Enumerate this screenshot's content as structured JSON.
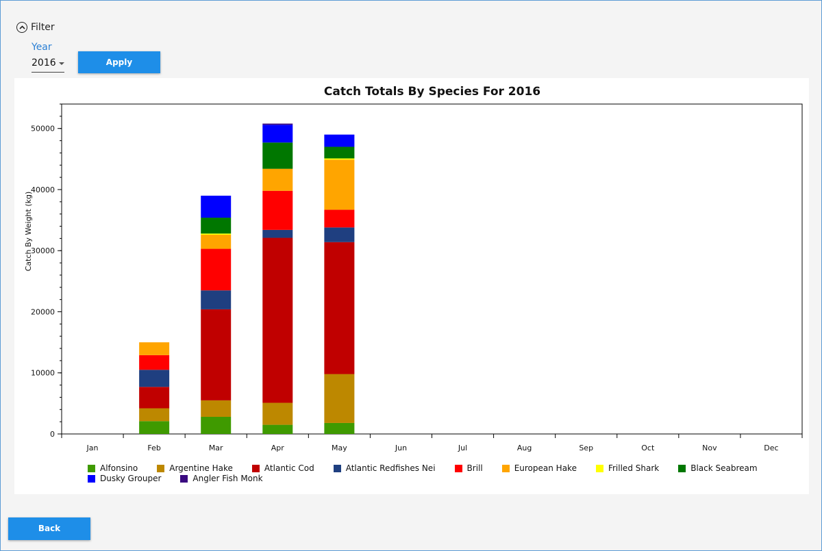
{
  "filter": {
    "toggle_label": "Filter",
    "year_label": "Year",
    "year_value": "2016",
    "apply_label": "Apply"
  },
  "back_label": "Back",
  "chart_data": {
    "type": "bar",
    "stacked": true,
    "title": "Catch Totals By Species For 2016",
    "xlabel": "",
    "ylabel": "Catch By Weight (kg)",
    "ylim": [
      0,
      54000
    ],
    "yticks": [
      0,
      10000,
      20000,
      30000,
      40000,
      50000
    ],
    "ytick_labels": [
      "0",
      "10000",
      "20000",
      "30000",
      "40000",
      "50000"
    ],
    "legend_position": "bottom",
    "categories": [
      "Jan",
      "Feb",
      "Mar",
      "Apr",
      "May",
      "Jun",
      "Jul",
      "Aug",
      "Sep",
      "Oct",
      "Nov",
      "Dec"
    ],
    "series": [
      {
        "name": "Alfonsino",
        "color": "#3f9a00",
        "values": [
          0,
          2100,
          2800,
          1500,
          1800,
          0,
          0,
          0,
          0,
          0,
          0,
          0
        ]
      },
      {
        "name": "Argentine Hake",
        "color": "#bd8800",
        "values": [
          0,
          2100,
          2700,
          3600,
          8000,
          0,
          0,
          0,
          0,
          0,
          0,
          0
        ]
      },
      {
        "name": "Atlantic Cod",
        "color": "#c00000",
        "values": [
          0,
          3500,
          14900,
          27000,
          21600,
          0,
          0,
          0,
          0,
          0,
          0,
          0
        ]
      },
      {
        "name": "Atlantic Redfishes Nei",
        "color": "#1f3f80",
        "values": [
          0,
          2800,
          3100,
          1300,
          2400,
          0,
          0,
          0,
          0,
          0,
          0,
          0
        ]
      },
      {
        "name": "Brill",
        "color": "#ff0000",
        "values": [
          0,
          2400,
          6800,
          6400,
          2900,
          0,
          0,
          0,
          0,
          0,
          0,
          0
        ]
      },
      {
        "name": "European Hake",
        "color": "#ffa500",
        "values": [
          0,
          2100,
          2300,
          3600,
          8200,
          0,
          0,
          0,
          0,
          0,
          0,
          0
        ]
      },
      {
        "name": "Frilled Shark",
        "color": "#ffff00",
        "values": [
          0,
          0,
          200,
          0,
          200,
          0,
          0,
          0,
          0,
          0,
          0,
          0
        ]
      },
      {
        "name": "Black Seabream",
        "color": "#007700",
        "values": [
          0,
          0,
          2600,
          4300,
          1900,
          0,
          0,
          0,
          0,
          0,
          0,
          0
        ]
      },
      {
        "name": "Dusky Grouper",
        "color": "#0000ff",
        "values": [
          0,
          0,
          3600,
          2900,
          2000,
          0,
          0,
          0,
          0,
          0,
          0,
          0
        ]
      },
      {
        "name": "Angler Fish Monk",
        "color": "#3a0a80",
        "values": [
          0,
          0,
          0,
          200,
          0,
          0,
          0,
          0,
          0,
          0,
          0,
          0
        ]
      }
    ]
  }
}
